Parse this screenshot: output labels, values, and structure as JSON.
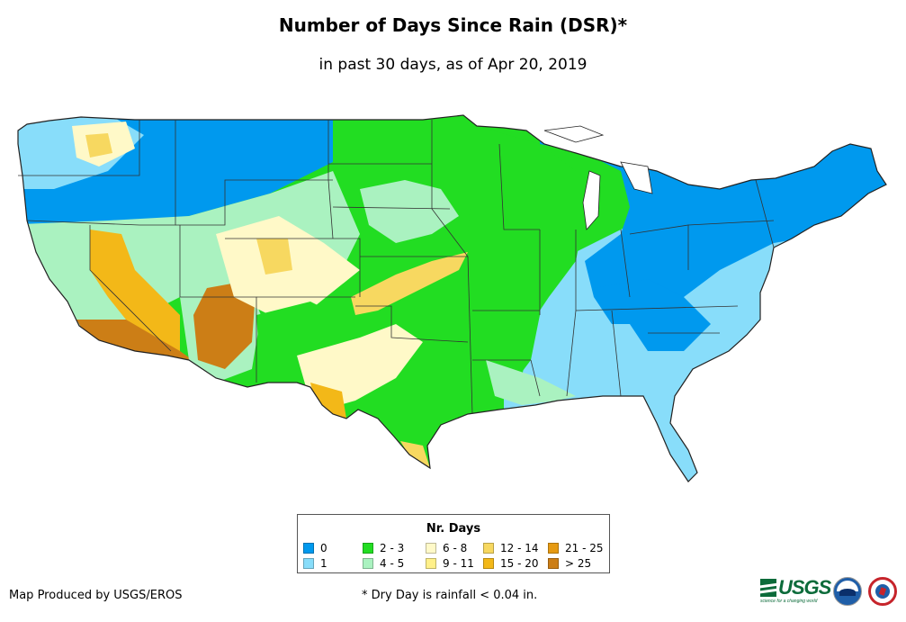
{
  "title": "Number of Days Since Rain (DSR)*",
  "subtitle": "in past 30 days, as of Apr 20, 2019",
  "legend": {
    "title": "Nr. Days",
    "items": [
      {
        "label": "0",
        "color": "#0099ee"
      },
      {
        "label": "1",
        "color": "#88ddfa"
      },
      {
        "label": "2 - 3",
        "color": "#22dd22"
      },
      {
        "label": "4 - 5",
        "color": "#aaf2c0"
      },
      {
        "label": "6 - 8",
        "color": "#fff9c8"
      },
      {
        "label": "9 - 11",
        "color": "#fff08a"
      },
      {
        "label": "12 - 14",
        "color": "#f7d860"
      },
      {
        "label": "15 - 20",
        "color": "#f3b818"
      },
      {
        "label": "21 - 25",
        "color": "#e69a12"
      },
      {
        "label": "> 25",
        "color": "#cc7e16"
      }
    ]
  },
  "footer": {
    "credit": "Map Produced by USGS/EROS",
    "note": "* Dry Day is rainfall < 0.04 in."
  },
  "logos": {
    "usgs": "USGS",
    "usgs_tagline": "science for a changing world"
  },
  "map": {
    "regions": [
      {
        "name": "northwest-coast",
        "category": "1"
      },
      {
        "name": "washington-east",
        "category": "6 - 8"
      },
      {
        "name": "northern-plains-west",
        "category": "0"
      },
      {
        "name": "california-coast",
        "category": "4 - 5"
      },
      {
        "name": "nevada-west",
        "category": "15 - 20"
      },
      {
        "name": "southern-california",
        "category": "> 25"
      },
      {
        "name": "arizona",
        "category": "> 25"
      },
      {
        "name": "utah-colorado",
        "category": "6 - 8"
      },
      {
        "name": "new-mexico",
        "category": "2 - 3"
      },
      {
        "name": "west-texas",
        "category": "6 - 8"
      },
      {
        "name": "texas-border",
        "category": "15 - 20"
      },
      {
        "name": "central-plains",
        "category": "2 - 3"
      },
      {
        "name": "midwest",
        "category": "2 - 3"
      },
      {
        "name": "southeast",
        "category": "1"
      },
      {
        "name": "northeast",
        "category": "0"
      }
    ]
  }
}
